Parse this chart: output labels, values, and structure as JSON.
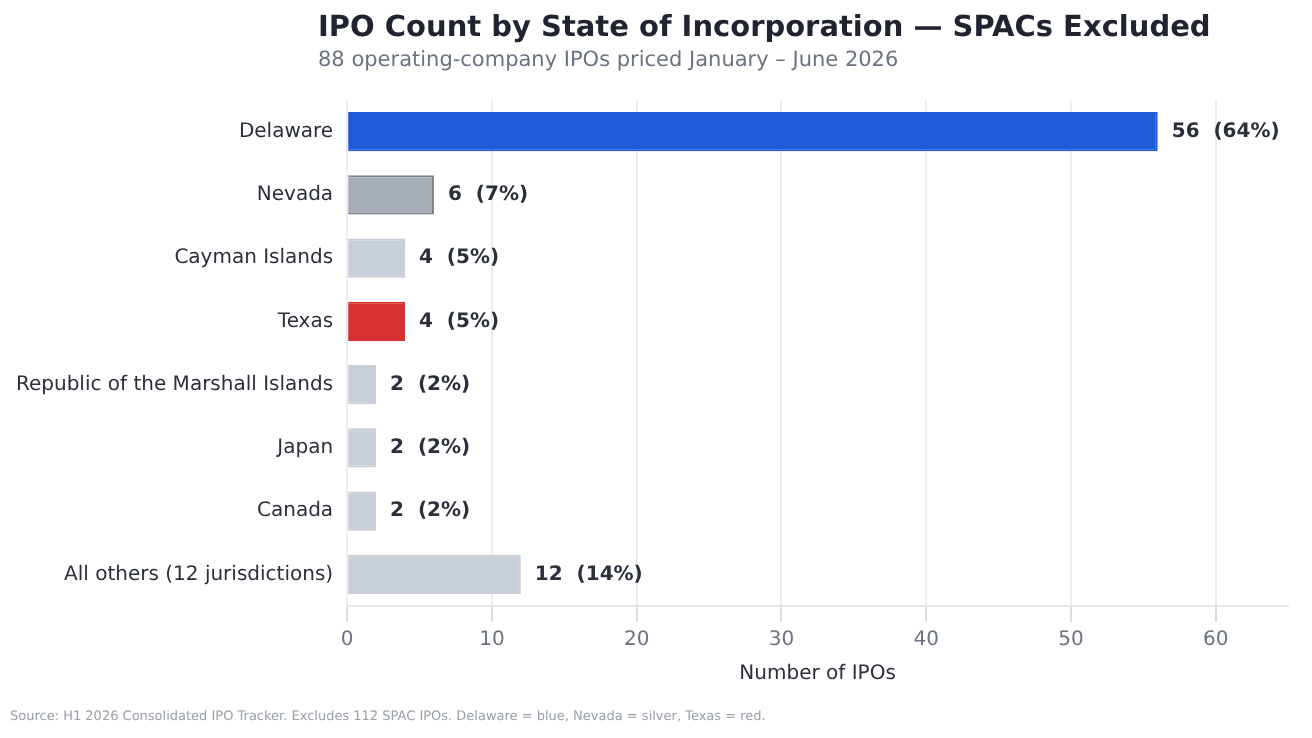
{
  "chart_data": {
    "type": "bar",
    "orientation": "horizontal",
    "title": "IPO Count by State of Incorporation — SPACs Excluded",
    "subtitle": "88 operating-company IPOs priced January – June 2026",
    "categories": [
      "Delaware",
      "Nevada",
      "Cayman Islands",
      "Texas",
      "Republic of the Marshall Islands",
      "Japan",
      "Canada",
      "All others (12 jurisdictions)"
    ],
    "values": [
      56,
      6,
      4,
      4,
      2,
      2,
      2,
      12
    ],
    "colors": [
      "#1f5bd8",
      "#a7adb6",
      "#c8cfd9",
      "#d63232",
      "#c8cfd9",
      "#c8cfd9",
      "#c8cfd9",
      "#c8cfd9"
    ],
    "value_labels": [
      "56  (64%)",
      "6  (7%)",
      "4  (5%)",
      "4  (5%)",
      "2  (2%)",
      "2  (2%)",
      "2  (2%)",
      "12  (14%)"
    ],
    "xlabel": "Number of IPOs",
    "xlim": [
      0,
      65
    ],
    "xticks": [
      0,
      10,
      20,
      30,
      40,
      50,
      60
    ],
    "grid": "x",
    "legend": false,
    "annotations": [
      "Source: H1 2026 Consolidated IPO Tracker. Excludes 112 SPAC IPOs. Delaware = blue, Nevada = silver, Texas = red."
    ]
  }
}
